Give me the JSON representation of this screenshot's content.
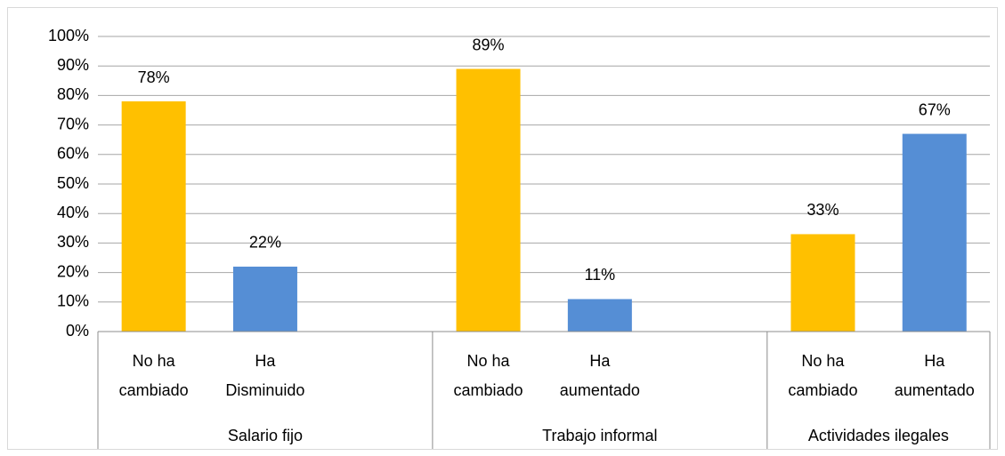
{
  "chart_data": {
    "type": "bar",
    "groups": [
      {
        "label": "Salario fijo",
        "categories": [
          "No ha cambiado",
          "Ha Disminuido",
          null
        ]
      },
      {
        "label": "Trabajo informal",
        "categories": [
          "No ha cambiado",
          "Ha aumentado",
          null
        ]
      },
      {
        "label": "Actividades ilegales",
        "categories": [
          "No ha cambiado",
          "Ha aumentado"
        ]
      }
    ],
    "values": [
      78,
      22,
      null,
      89,
      11,
      null,
      33,
      67
    ],
    "value_labels": [
      "78%",
      "22%",
      null,
      "89%",
      "11%",
      null,
      "33%",
      "67%"
    ],
    "colors": [
      "#ffc000",
      "#558ed5",
      null,
      "#ffc000",
      "#558ed5",
      null,
      "#ffc000",
      "#558ed5"
    ],
    "ylim": [
      0,
      100
    ],
    "yticks": [
      {
        "value": 0,
        "label": "0%"
      },
      {
        "value": 10,
        "label": "10%"
      },
      {
        "value": 20,
        "label": "20%"
      },
      {
        "value": 30,
        "label": "30%"
      },
      {
        "value": 40,
        "label": "40%"
      },
      {
        "value": 50,
        "label": "50%"
      },
      {
        "value": 60,
        "label": "60%"
      },
      {
        "value": 70,
        "label": "70%"
      },
      {
        "value": 80,
        "label": "80%"
      },
      {
        "value": 90,
        "label": "90%"
      },
      {
        "value": 100,
        "label": "100%"
      }
    ],
    "grid": true
  }
}
